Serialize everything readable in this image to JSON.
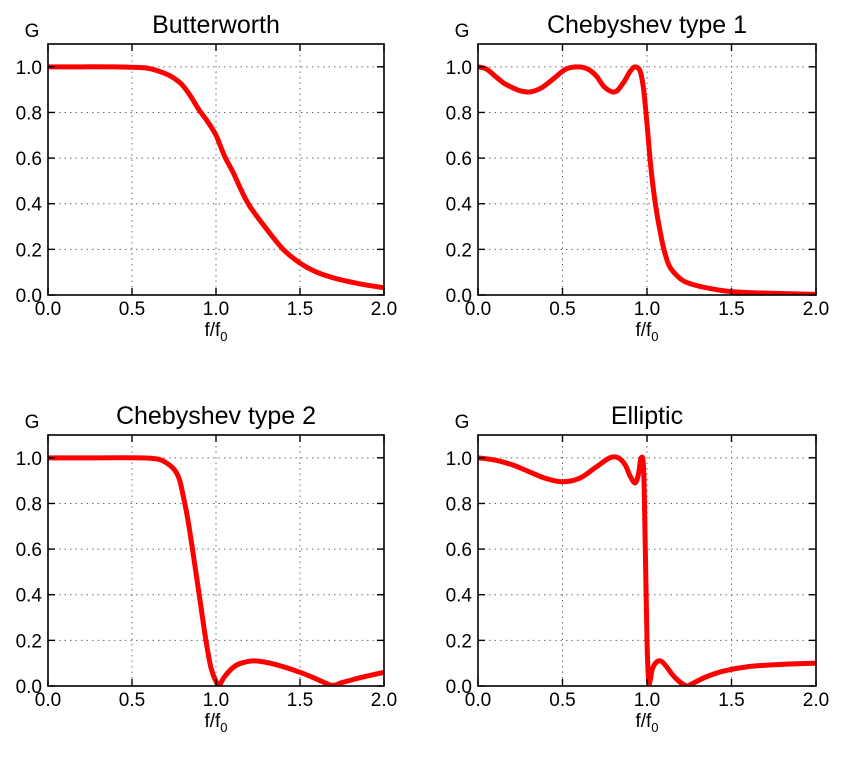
{
  "chart_data": [
    {
      "type": "line",
      "title": "Butterworth",
      "xlabel": "f/f",
      "xlabel_sub": "0",
      "ylabel": "G",
      "xlim": [
        0,
        2
      ],
      "ylim": [
        0,
        1.1
      ],
      "xticks": [
        "0.0",
        "0.5",
        "1.0",
        "1.5",
        "2.0"
      ],
      "yticks": [
        "0.0",
        "0.2",
        "0.4",
        "0.6",
        "0.8",
        "1.0"
      ],
      "grid": true,
      "series": [
        {
          "color": "#ff0000",
          "x": [
            0,
            0.2,
            0.4,
            0.5,
            0.6,
            0.7,
            0.75,
            0.8,
            0.85,
            0.9,
            0.95,
            1.0,
            1.05,
            1.1,
            1.15,
            1.2,
            1.3,
            1.4,
            1.5,
            1.6,
            1.7,
            1.8,
            1.9,
            2.0
          ],
          "y": [
            1.0,
            1.0,
            1.0,
            0.998,
            0.993,
            0.97,
            0.95,
            0.92,
            0.87,
            0.81,
            0.76,
            0.7,
            0.61,
            0.54,
            0.46,
            0.39,
            0.29,
            0.2,
            0.14,
            0.1,
            0.075,
            0.057,
            0.043,
            0.032
          ]
        }
      ]
    },
    {
      "type": "line",
      "title": "Chebyshev type 1",
      "xlabel": "f/f",
      "xlabel_sub": "0",
      "ylabel": "G",
      "xlim": [
        0,
        2
      ],
      "ylim": [
        0,
        1.1
      ],
      "xticks": [
        "0.0",
        "0.5",
        "1.0",
        "1.5",
        "2.0"
      ],
      "yticks": [
        "0.0",
        "0.2",
        "0.4",
        "0.6",
        "0.8",
        "1.0"
      ],
      "grid": true,
      "series": [
        {
          "color": "#ff0000",
          "x": [
            0,
            0.05,
            0.1,
            0.15,
            0.2,
            0.25,
            0.31,
            0.38,
            0.45,
            0.52,
            0.59,
            0.65,
            0.7,
            0.75,
            0.81,
            0.86,
            0.9,
            0.93,
            0.96,
            0.98,
            1.0,
            1.02,
            1.04,
            1.06,
            1.08,
            1.1,
            1.13,
            1.17,
            1.22,
            1.3,
            1.4,
            1.5,
            1.7,
            2.0
          ],
          "y": [
            1.0,
            0.99,
            0.96,
            0.93,
            0.91,
            0.895,
            0.89,
            0.91,
            0.95,
            0.99,
            1.0,
            0.99,
            0.96,
            0.91,
            0.89,
            0.93,
            0.98,
            1.0,
            0.98,
            0.9,
            0.75,
            0.58,
            0.45,
            0.35,
            0.27,
            0.2,
            0.13,
            0.09,
            0.06,
            0.04,
            0.025,
            0.015,
            0.008,
            0.003
          ]
        }
      ]
    },
    {
      "type": "line",
      "title": "Chebyshev type 2",
      "xlabel": "f/f",
      "xlabel_sub": "0",
      "ylabel": "G",
      "xlim": [
        0,
        2
      ],
      "ylim": [
        0,
        1.1
      ],
      "xticks": [
        "0.0",
        "0.5",
        "1.0",
        "1.5",
        "2.0"
      ],
      "yticks": [
        "0.0",
        "0.2",
        "0.4",
        "0.6",
        "0.8",
        "1.0"
      ],
      "grid": true,
      "series": [
        {
          "color": "#ff0000",
          "x": [
            0,
            0.3,
            0.55,
            0.65,
            0.7,
            0.75,
            0.78,
            0.8,
            0.83,
            0.86,
            0.9,
            0.94,
            0.97,
            1.0,
            1.02,
            1.05,
            1.1,
            1.15,
            1.23,
            1.35,
            1.5,
            1.6,
            1.69,
            1.75,
            1.85,
            2.0
          ],
          "y": [
            1.0,
            1.0,
            1.0,
            0.995,
            0.98,
            0.95,
            0.91,
            0.85,
            0.74,
            0.6,
            0.4,
            0.2,
            0.08,
            0.02,
            0.005,
            0.04,
            0.08,
            0.1,
            0.11,
            0.095,
            0.06,
            0.03,
            0.003,
            0.015,
            0.035,
            0.06
          ]
        }
      ]
    },
    {
      "type": "line",
      "title": "Elliptic",
      "xlabel": "f/f",
      "xlabel_sub": "0",
      "ylabel": "G",
      "xlim": [
        0,
        2
      ],
      "ylim": [
        0,
        1.1
      ],
      "xticks": [
        "0.0",
        "0.5",
        "1.0",
        "1.5",
        "2.0"
      ],
      "yticks": [
        "0.0",
        "0.2",
        "0.4",
        "0.6",
        "0.8",
        "1.0"
      ],
      "grid": true,
      "series": [
        {
          "color": "#ff0000",
          "x": [
            0,
            0.1,
            0.2,
            0.3,
            0.4,
            0.5,
            0.6,
            0.7,
            0.78,
            0.83,
            0.87,
            0.9,
            0.93,
            0.95,
            0.965,
            0.98,
            0.99,
            1.0,
            1.01,
            1.02,
            1.03,
            1.05,
            1.08,
            1.11,
            1.15,
            1.19,
            1.22,
            1.24,
            1.28,
            1.35,
            1.45,
            1.6,
            1.8,
            2.0
          ],
          "y": [
            1.0,
            0.99,
            0.97,
            0.94,
            0.91,
            0.895,
            0.91,
            0.96,
            1.0,
            1.0,
            0.97,
            0.92,
            0.89,
            0.93,
            1.0,
            0.95,
            0.6,
            0.2,
            0.02,
            0.03,
            0.07,
            0.1,
            0.11,
            0.09,
            0.05,
            0.02,
            0.005,
            0.0,
            0.015,
            0.04,
            0.065,
            0.085,
            0.095,
            0.1
          ]
        }
      ]
    }
  ]
}
